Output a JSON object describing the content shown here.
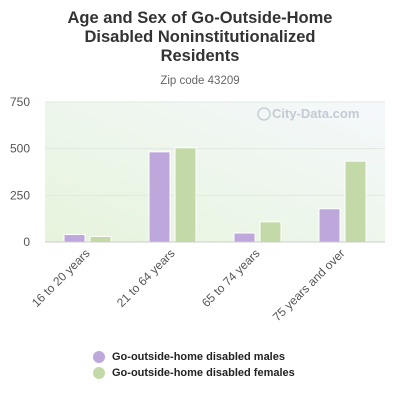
{
  "chart_data": {
    "type": "bar",
    "title_lines": [
      "Age and Sex of Go-Outside-Home",
      "Disabled Noninstitutionalized",
      "Residents"
    ],
    "subtitle": "Zip code 43209",
    "categories": [
      "16 to 20 years",
      "21 to 64 years",
      "65 to 74 years",
      "75 years and over"
    ],
    "series": [
      {
        "name": "Go-outside-home disabled males",
        "values": [
          40,
          483,
          48,
          178
        ],
        "color": "#bda7db"
      },
      {
        "name": "Go-outside-home disabled females",
        "values": [
          30,
          505,
          108,
          433
        ],
        "color": "#c4d9a8"
      }
    ],
    "ylim": [
      0,
      750
    ],
    "yticks": [
      "0",
      "250",
      "500",
      "750"
    ],
    "xlabel": "",
    "ylabel": "",
    "grid": true,
    "legend_position": "bottom",
    "watermark": "City-Data.com"
  }
}
